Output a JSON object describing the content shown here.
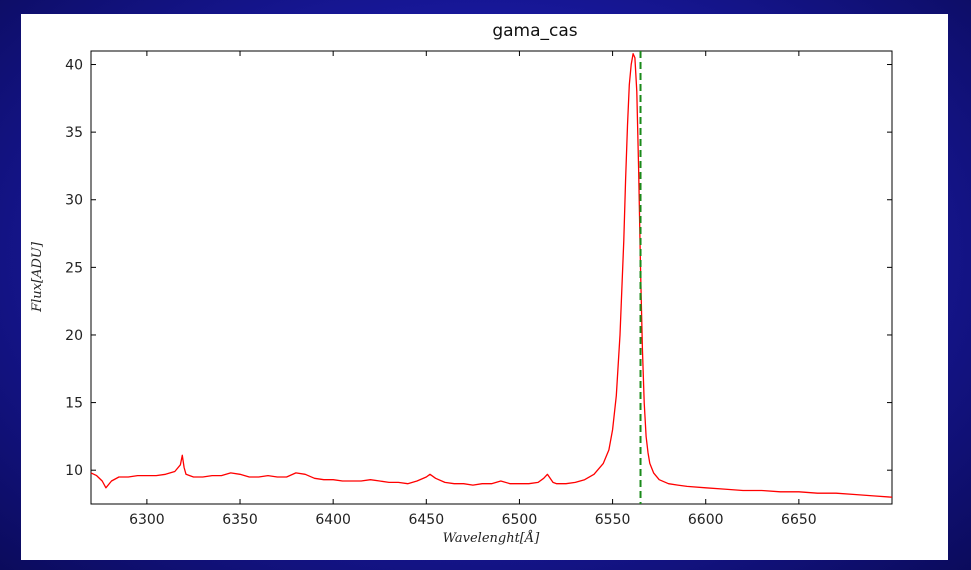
{
  "colors": {
    "spectrum": "#ff0000",
    "marker_line": "#1a8a1a",
    "slide_background": "#1a1aa6"
  },
  "chart_data": {
    "type": "line",
    "title": "gama_cas",
    "xlabel": "Wavelenght[Å]",
    "ylabel": "Flux[ADU]",
    "xlim": [
      6270,
      6700
    ],
    "ylim": [
      7.5,
      41
    ],
    "x_ticks": [
      6300,
      6350,
      6400,
      6450,
      6500,
      6550,
      6600,
      6650
    ],
    "y_ticks": [
      10,
      15,
      20,
      25,
      30,
      35,
      40
    ],
    "grid": false,
    "vertical_marker": {
      "x": 6565,
      "style": "dashed",
      "color": "#1a8a1a"
    },
    "series": [
      {
        "color": "#ff0000",
        "x": [
          6270,
          6273,
          6276,
          6278,
          6281,
          6285,
          6290,
          6295,
          6300,
          6305,
          6310,
          6315,
          6318,
          6319,
          6320,
          6321,
          6323,
          6325,
          6330,
          6335,
          6340,
          6345,
          6350,
          6355,
          6360,
          6365,
          6370,
          6375,
          6380,
          6385,
          6390,
          6395,
          6400,
          6405,
          6410,
          6415,
          6420,
          6425,
          6430,
          6435,
          6440,
          6445,
          6450,
          6452,
          6455,
          6460,
          6465,
          6470,
          6475,
          6480,
          6485,
          6490,
          6495,
          6500,
          6505,
          6510,
          6513,
          6515,
          6518,
          6520,
          6525,
          6530,
          6535,
          6540,
          6545,
          6548,
          6550,
          6552,
          6554,
          6556,
          6557,
          6558,
          6559,
          6560,
          6561,
          6562,
          6563,
          6564,
          6565,
          6566,
          6567,
          6568,
          6569,
          6570,
          6572,
          6575,
          6580,
          6585,
          6590,
          6600,
          6610,
          6620,
          6630,
          6640,
          6650,
          6660,
          6670,
          6680,
          6690,
          6700
        ],
        "y": [
          9.8,
          9.6,
          9.2,
          8.7,
          9.2,
          9.5,
          9.5,
          9.6,
          9.6,
          9.6,
          9.7,
          9.9,
          10.4,
          11.1,
          10.2,
          9.7,
          9.6,
          9.5,
          9.5,
          9.6,
          9.6,
          9.8,
          9.7,
          9.5,
          9.5,
          9.6,
          9.5,
          9.5,
          9.8,
          9.7,
          9.4,
          9.3,
          9.3,
          9.2,
          9.2,
          9.2,
          9.3,
          9.2,
          9.1,
          9.1,
          9.0,
          9.2,
          9.5,
          9.7,
          9.4,
          9.1,
          9.0,
          9.0,
          8.9,
          9.0,
          9.0,
          9.2,
          9.0,
          9.0,
          9.0,
          9.1,
          9.4,
          9.7,
          9.1,
          9.0,
          9.0,
          9.1,
          9.3,
          9.7,
          10.5,
          11.5,
          13.0,
          15.5,
          20.0,
          27.0,
          31.5,
          35.5,
          38.5,
          40.0,
          40.8,
          40.5,
          38.0,
          32.0,
          25.0,
          19.0,
          15.0,
          12.5,
          11.3,
          10.5,
          9.8,
          9.3,
          9.0,
          8.9,
          8.8,
          8.7,
          8.6,
          8.5,
          8.5,
          8.4,
          8.4,
          8.3,
          8.3,
          8.2,
          8.1,
          8.0
        ]
      }
    ]
  }
}
